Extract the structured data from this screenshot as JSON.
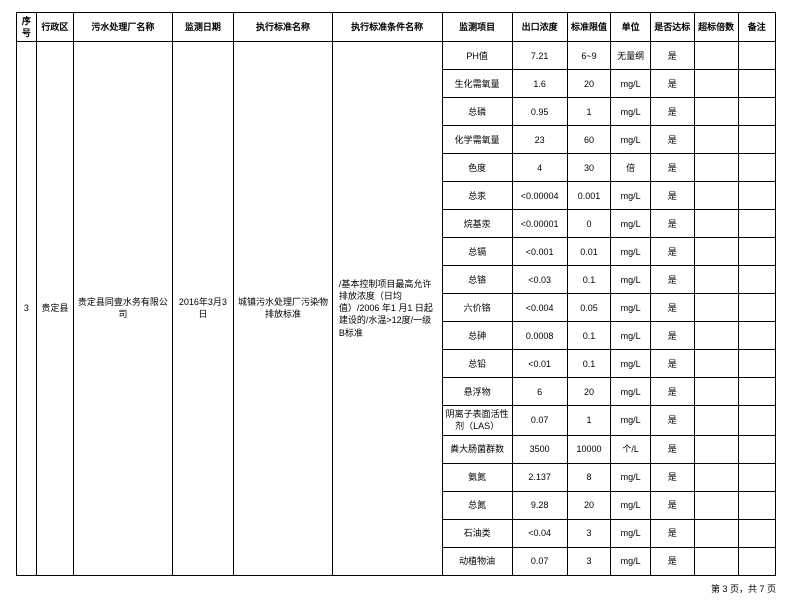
{
  "header": {
    "seq": "序号",
    "admin": "行政区",
    "plant": "污水处理厂名称",
    "date": "监测日期",
    "std": "执行标准名称",
    "cond": "执行标准条件名称",
    "item": "监测项目",
    "val": "出口浓度",
    "lim": "标准限值",
    "unit": "单位",
    "pass": "是否达标",
    "times": "超标倍数",
    "note": "备注"
  },
  "row": {
    "seq": "3",
    "admin": "贵定县",
    "plant": "贵定县同壹水务有限公司",
    "date": "2016年3月3日",
    "std": "城镇污水处理厂污染物排放标准",
    "cond": "/基本控制项目最高允许排放浓度（日均值）/2006 年1 月1 日起建设的/水温>12度/一级B标准"
  },
  "items": [
    {
      "item": "PH值",
      "val": "7.21",
      "lim": "6~9",
      "unit": "无量纲",
      "pass": "是",
      "times": "",
      "note": ""
    },
    {
      "item": "生化需氧量",
      "val": "1.6",
      "lim": "20",
      "unit": "mg/L",
      "pass": "是",
      "times": "",
      "note": ""
    },
    {
      "item": "总磷",
      "val": "0.95",
      "lim": "1",
      "unit": "mg/L",
      "pass": "是",
      "times": "",
      "note": ""
    },
    {
      "item": "化学需氧量",
      "val": "23",
      "lim": "60",
      "unit": "mg/L",
      "pass": "是",
      "times": "",
      "note": ""
    },
    {
      "item": "色度",
      "val": "4",
      "lim": "30",
      "unit": "倍",
      "pass": "是",
      "times": "",
      "note": ""
    },
    {
      "item": "总汞",
      "val": "<0.00004",
      "lim": "0.001",
      "unit": "mg/L",
      "pass": "是",
      "times": "",
      "note": ""
    },
    {
      "item": "烷基汞",
      "val": "<0.00001",
      "lim": "0",
      "unit": "mg/L",
      "pass": "是",
      "times": "",
      "note": ""
    },
    {
      "item": "总镉",
      "val": "<0.001",
      "lim": "0.01",
      "unit": "mg/L",
      "pass": "是",
      "times": "",
      "note": ""
    },
    {
      "item": "总铬",
      "val": "<0.03",
      "lim": "0.1",
      "unit": "mg/L",
      "pass": "是",
      "times": "",
      "note": ""
    },
    {
      "item": "六价铬",
      "val": "<0.004",
      "lim": "0.05",
      "unit": "mg/L",
      "pass": "是",
      "times": "",
      "note": ""
    },
    {
      "item": "总砷",
      "val": "0.0008",
      "lim": "0.1",
      "unit": "mg/L",
      "pass": "是",
      "times": "",
      "note": ""
    },
    {
      "item": "总铅",
      "val": "<0.01",
      "lim": "0.1",
      "unit": "mg/L",
      "pass": "是",
      "times": "",
      "note": ""
    },
    {
      "item": "悬浮物",
      "val": "6",
      "lim": "20",
      "unit": "mg/L",
      "pass": "是",
      "times": "",
      "note": ""
    },
    {
      "item": "阴离子表面活性剂（LAS）",
      "val": "0.07",
      "lim": "1",
      "unit": "mg/L",
      "pass": "是",
      "times": "",
      "note": ""
    },
    {
      "item": "粪大肠菌群数",
      "val": "3500",
      "lim": "10000",
      "unit": "个/L",
      "pass": "是",
      "times": "",
      "note": ""
    },
    {
      "item": "氨氮",
      "val": "2.137",
      "lim": "8",
      "unit": "mg/L",
      "pass": "是",
      "times": "",
      "note": ""
    },
    {
      "item": "总氮",
      "val": "9.28",
      "lim": "20",
      "unit": "mg/L",
      "pass": "是",
      "times": "",
      "note": ""
    },
    {
      "item": "石油类",
      "val": "<0.04",
      "lim": "3",
      "unit": "mg/L",
      "pass": "是",
      "times": "",
      "note": ""
    },
    {
      "item": "动植物油",
      "val": "0.07",
      "lim": "3",
      "unit": "mg/L",
      "pass": "是",
      "times": "",
      "note": ""
    }
  ],
  "footer": "第 3 页，共 7 页"
}
